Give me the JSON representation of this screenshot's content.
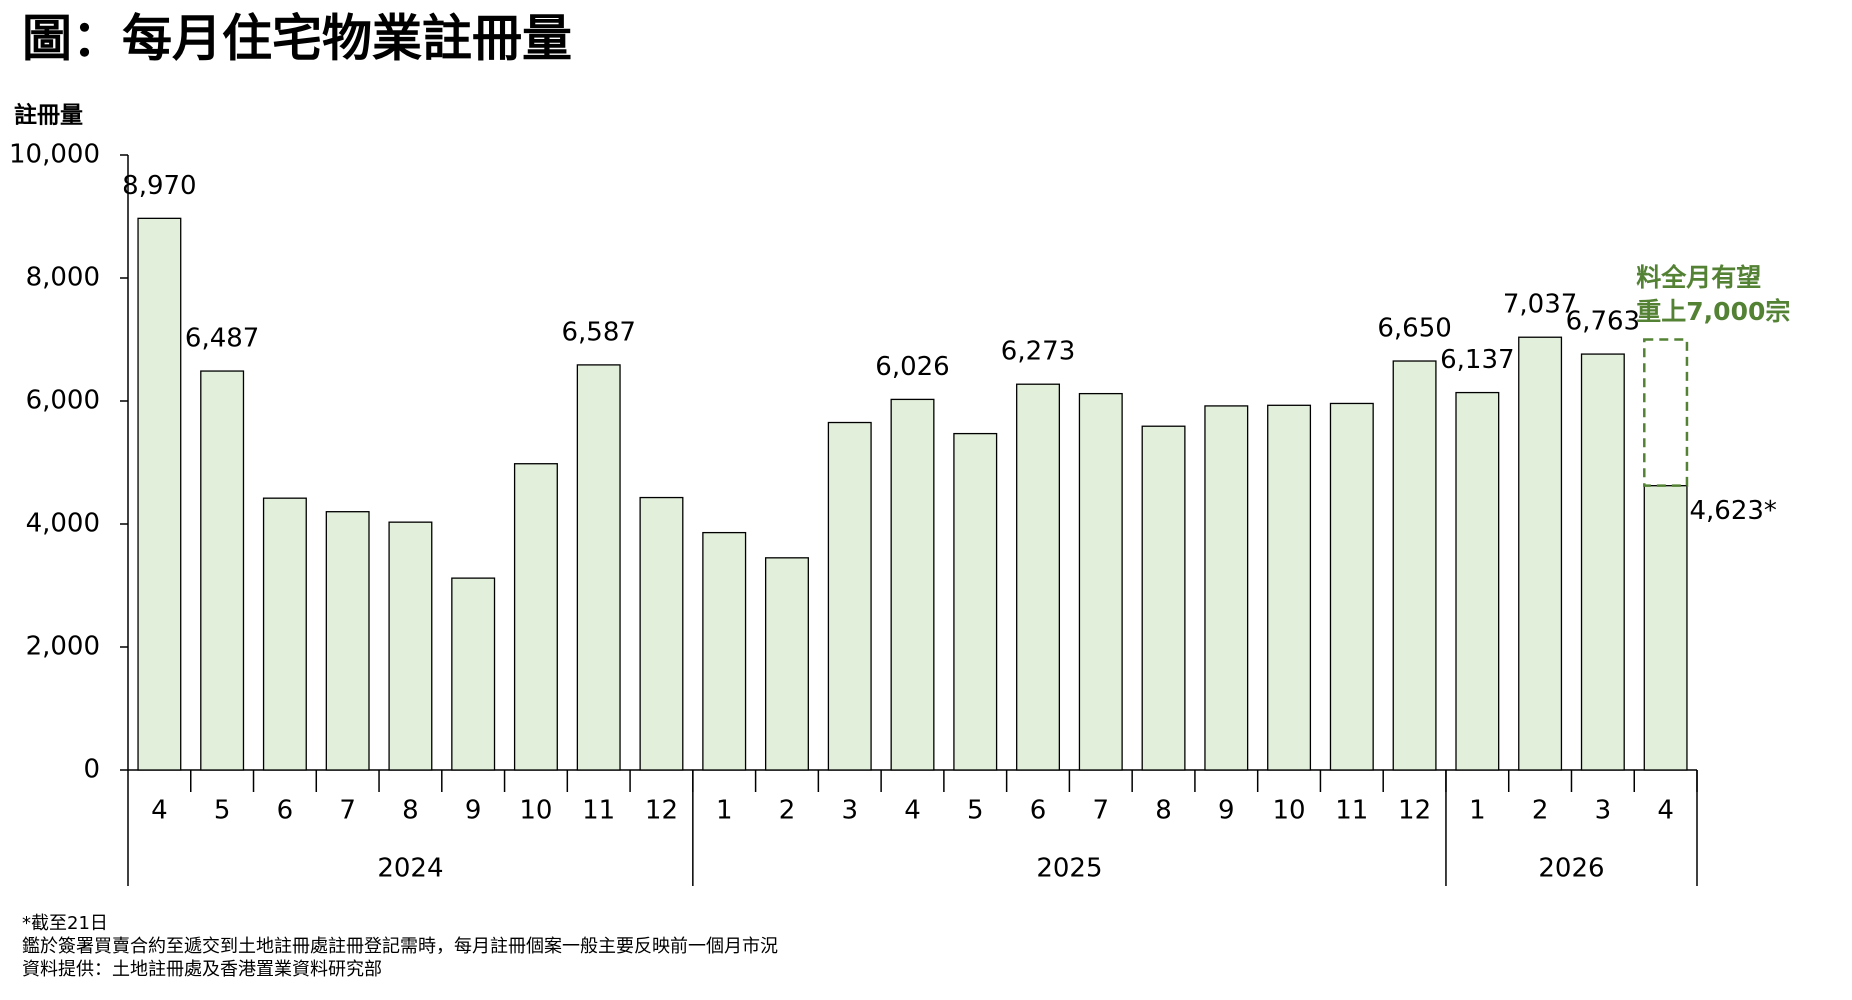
{
  "chart_data": {
    "type": "bar",
    "title": "圖：每月住宅物業註冊量",
    "y_label": "註冊量",
    "color": "#e2efda",
    "edge_color": "#000000",
    "ylim": [
      0,
      10000
    ],
    "yticks": [
      0,
      {
        "value": 2000,
        "label": "2,000"
      },
      {
        "value": 4000,
        "label": "4,000"
      },
      {
        "value": 6000,
        "label": "6,000"
      },
      {
        "value": 8000,
        "label": "8,000"
      },
      {
        "value": 10000,
        "label": "10,000"
      }
    ],
    "groups": [
      {
        "name": "2024",
        "categories": [
          "4",
          "5",
          "6",
          "7",
          "8",
          "9",
          "10",
          "11",
          "12"
        ],
        "values": [
          8970,
          6487,
          4420,
          4200,
          4030,
          3120,
          4980,
          6587,
          4430
        ],
        "value_labels": [
          "8,970",
          "6,487",
          null,
          null,
          null,
          null,
          null,
          "6,587",
          null
        ]
      },
      {
        "name": "2025",
        "categories": [
          "1",
          "2",
          "3",
          "4",
          "5",
          "6",
          "7",
          "8",
          "9",
          "10",
          "11",
          "12"
        ],
        "values": [
          3860,
          3450,
          5650,
          6026,
          5470,
          6273,
          6120,
          5590,
          5920,
          5930,
          5960,
          6650
        ],
        "value_labels": [
          null,
          null,
          null,
          "6,026",
          null,
          "6,273",
          null,
          null,
          null,
          null,
          null,
          "6,650"
        ]
      },
      {
        "name": "2026",
        "categories": [
          "1",
          "2",
          "3",
          "4"
        ],
        "values": [
          6137,
          7037,
          6763,
          4623
        ],
        "value_labels": [
          "6,137",
          "7,037",
          "6,763",
          "4,623*"
        ]
      }
    ],
    "projection": {
      "value": 7000,
      "color": "#548235",
      "label_lines": [
        "料全月有望",
        "重上7,000宗"
      ]
    },
    "footnotes": [
      "*截至21日",
      "鑑於簽署買賣合約至遞交到土地註冊處註冊登記需時，每月註冊個案一般主要反映前一個月市況",
      "資料提供：土地註冊處及香港置業資料研究部"
    ]
  }
}
